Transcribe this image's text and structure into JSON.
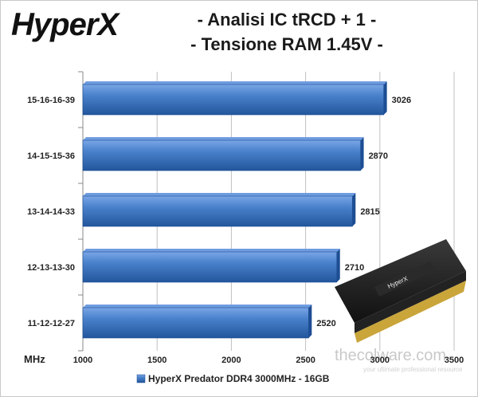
{
  "logo_text": "HyperX",
  "title_lines": [
    "- Analisi IC  tRCD + 1 -",
    "- Tensione RAM 1.45V -"
  ],
  "watermark": {
    "name": "thecolware.com",
    "tagline": "your ultimate professional resource"
  },
  "colors": {
    "bar": "#3f76c0",
    "bar_light": "#6e9ce0",
    "bar_dark": "#1d4e93",
    "grid": "#c0c0c0"
  },
  "chart_data": {
    "type": "bar",
    "orientation": "horizontal",
    "categories": [
      "15-16-16-39",
      "14-15-15-36",
      "13-14-14-33",
      "12-13-13-30",
      "11-12-12-27"
    ],
    "series": [
      {
        "name": "HyperX Predator DDR4 3000MHz - 16GB",
        "values": [
          3026,
          2870,
          2815,
          2710,
          2520
        ]
      }
    ],
    "xlabel": "MHz",
    "xlim": [
      1000,
      3500
    ],
    "xticks": [
      "1000",
      "1500",
      "2000",
      "2500",
      "3000",
      "3500"
    ],
    "grid": true,
    "legend_position": "bottom"
  }
}
